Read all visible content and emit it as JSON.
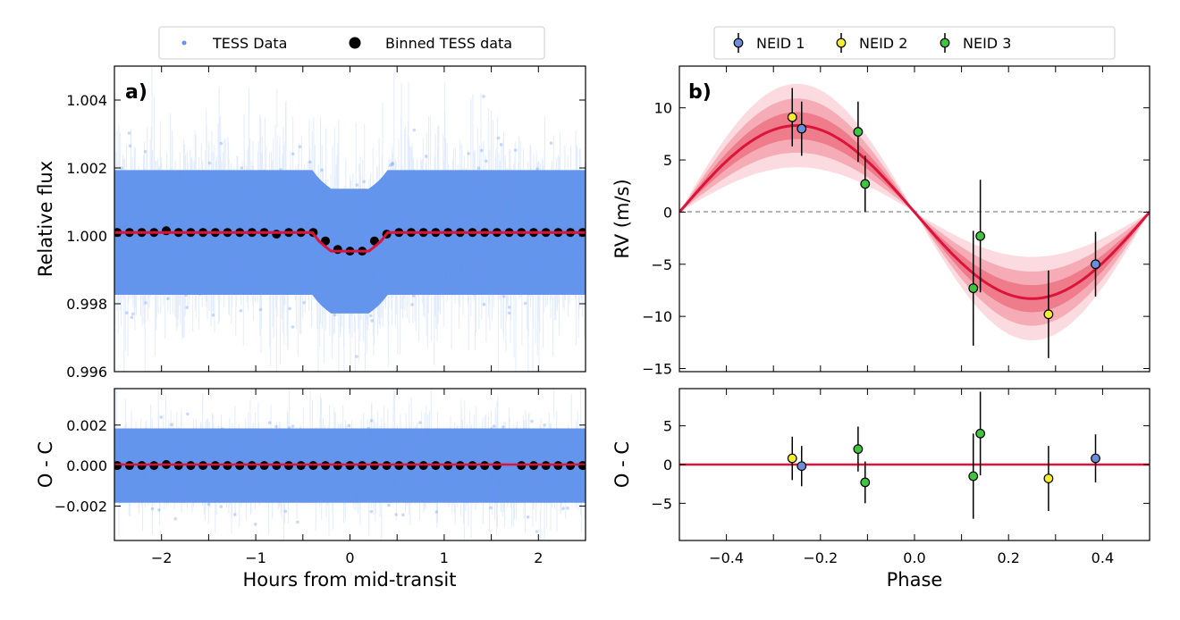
{
  "chart_data": [
    {
      "panel": "a",
      "type": "scatter",
      "panel_label": "a)",
      "xlabel": "Hours from mid-transit",
      "ylabel": "Relative flux",
      "xlim": [
        -2.5,
        2.5
      ],
      "ylim": [
        0.996,
        1.005
      ],
      "xticks": [
        "−2",
        "−1",
        "0",
        "1",
        "2"
      ],
      "yticks": [
        "0.996",
        "0.998",
        "1.000",
        "1.002",
        "1.004"
      ],
      "legend": [
        "TESS Data",
        "Binned TESS data"
      ],
      "colors": {
        "raw": "#6495ED",
        "binned": "#000000",
        "model": "#DC143C"
      },
      "model": {
        "baseline": 1.0001,
        "depth": 0.00055,
        "x": [
          -2.5,
          -0.4,
          -0.33,
          -0.27,
          -0.2,
          0.2,
          0.27,
          0.33,
          0.4,
          2.5
        ],
        "y": [
          1.0001,
          1.0001,
          0.99985,
          0.9997,
          0.99955,
          0.99955,
          0.9997,
          0.99985,
          1.0001,
          1.0001
        ]
      },
      "binned": {
        "x": [
          -2.47,
          -2.34,
          -2.21,
          -2.08,
          -1.95,
          -1.82,
          -1.69,
          -1.56,
          -1.43,
          -1.3,
          -1.17,
          -1.04,
          -0.91,
          -0.78,
          -0.65,
          -0.52,
          -0.39,
          -0.26,
          -0.13,
          0.0,
          0.13,
          0.26,
          0.39,
          0.52,
          0.65,
          0.78,
          0.91,
          1.04,
          1.17,
          1.3,
          1.43,
          1.56,
          1.69,
          1.82,
          1.95,
          2.08,
          2.21,
          2.34,
          2.47
        ],
        "y": [
          1.0001,
          1.0001,
          1.0001,
          1.0001,
          1.00015,
          1.0001,
          1.0001,
          1.0001,
          1.0001,
          1.0001,
          1.0001,
          1.0001,
          1.0001,
          1.00005,
          1.0001,
          1.0001,
          1.0001,
          0.99985,
          0.9996,
          0.99955,
          0.99955,
          0.99985,
          1.00005,
          1.0001,
          1.0001,
          1.0001,
          1.0001,
          1.0001,
          1.0001,
          1.0001,
          1.0001,
          1.0001,
          1.0001,
          1.0001,
          1.0001,
          1.0001,
          1.0001,
          1.0001,
          1.0001
        ]
      }
    },
    {
      "panel": "a-residual",
      "type": "scatter",
      "ylabel": "O - C",
      "xlim": [
        -2.5,
        2.5
      ],
      "ylim": [
        -0.0037,
        0.0038
      ],
      "yticks": [
        "−0.002",
        "0.000",
        "0.002"
      ],
      "binned": {
        "x": [
          -2.47,
          -2.34,
          -2.21,
          -2.08,
          -1.95,
          -1.82,
          -1.69,
          -1.56,
          -1.43,
          -1.3,
          -1.17,
          -1.04,
          -0.91,
          -0.78,
          -0.65,
          -0.52,
          -0.39,
          -0.26,
          -0.13,
          0.0,
          0.13,
          0.26,
          0.39,
          0.52,
          0.65,
          0.78,
          0.91,
          1.04,
          1.17,
          1.3,
          1.43,
          1.56,
          1.82,
          1.95,
          2.08,
          2.21,
          2.34,
          2.47
        ],
        "y": [
          0.0,
          0.0,
          0.0,
          0.0,
          5e-05,
          0.0,
          0.0,
          0.0,
          0.0,
          0.0,
          0.0,
          0.0,
          0.0,
          0.0,
          0.0,
          0.0,
          0.0,
          0.0,
          0.0,
          0.0,
          0.0,
          0.0,
          0.0,
          0.0,
          0.0,
          0.0,
          0.0,
          0.0,
          0.0,
          0.0,
          0.0,
          0.0,
          0.0,
          0.0,
          0.0,
          0.0,
          0.0,
          0.0
        ]
      }
    },
    {
      "panel": "b",
      "type": "scatter",
      "panel_label": "b)",
      "xlabel": "Phase",
      "ylabel": "RV (m/s)",
      "xlim": [
        -0.5,
        0.5
      ],
      "ylim": [
        -15.3,
        14
      ],
      "xticks": [
        "−0.4",
        "−0.2",
        "0.0",
        "0.2",
        "0.4"
      ],
      "yticks": [
        "−15",
        "−10",
        "−5",
        "0",
        "5",
        "10"
      ],
      "legend": [
        "NEID 1",
        "NEID 2",
        "NEID 3"
      ],
      "model": {
        "semi_amplitude": 8.3,
        "bands": [
          4.0,
          2.6,
          1.3
        ],
        "color": "#DC143C"
      },
      "series": [
        {
          "name": "NEID 1",
          "color": "#6A8FD8",
          "points": [
            {
              "x": -0.24,
              "y": 8.0,
              "err": 2.6
            },
            {
              "x": 0.385,
              "y": -5.0,
              "err": 3.1
            }
          ]
        },
        {
          "name": "NEID 2",
          "color": "#F5EE2E",
          "points": [
            {
              "x": -0.26,
              "y": 9.1,
              "err": 2.8
            },
            {
              "x": 0.285,
              "y": -9.8,
              "err": 4.2
            }
          ]
        },
        {
          "name": "NEID 3",
          "color": "#3EC43E",
          "points": [
            {
              "x": -0.12,
              "y": 7.7,
              "err": 2.9
            },
            {
              "x": -0.105,
              "y": 2.7,
              "err": 2.7
            },
            {
              "x": 0.125,
              "y": -7.3,
              "err": 5.5
            },
            {
              "x": 0.14,
              "y": -2.3,
              "err": 5.4
            }
          ]
        }
      ]
    },
    {
      "panel": "b-residual",
      "type": "scatter",
      "ylabel": "O - C",
      "xlim": [
        -0.5,
        0.5
      ],
      "ylim": [
        -9.8,
        9.8
      ],
      "yticks": [
        "−5",
        "0",
        "5"
      ],
      "series": [
        {
          "name": "NEID 1",
          "color": "#6A8FD8",
          "points": [
            {
              "x": -0.24,
              "y": -0.2,
              "err": 2.6
            },
            {
              "x": 0.385,
              "y": 0.8,
              "err": 3.1
            }
          ]
        },
        {
          "name": "NEID 2",
          "color": "#F5EE2E",
          "points": [
            {
              "x": -0.26,
              "y": 0.8,
              "err": 2.8
            },
            {
              "x": 0.285,
              "y": -1.8,
              "err": 4.2
            }
          ]
        },
        {
          "name": "NEID 3",
          "color": "#3EC43E",
          "points": [
            {
              "x": -0.12,
              "y": 2.0,
              "err": 2.9
            },
            {
              "x": -0.105,
              "y": -2.3,
              "err": 2.7
            },
            {
              "x": 0.125,
              "y": -1.5,
              "err": 5.5
            },
            {
              "x": 0.14,
              "y": 4.0,
              "err": 5.4
            }
          ]
        }
      ]
    }
  ]
}
